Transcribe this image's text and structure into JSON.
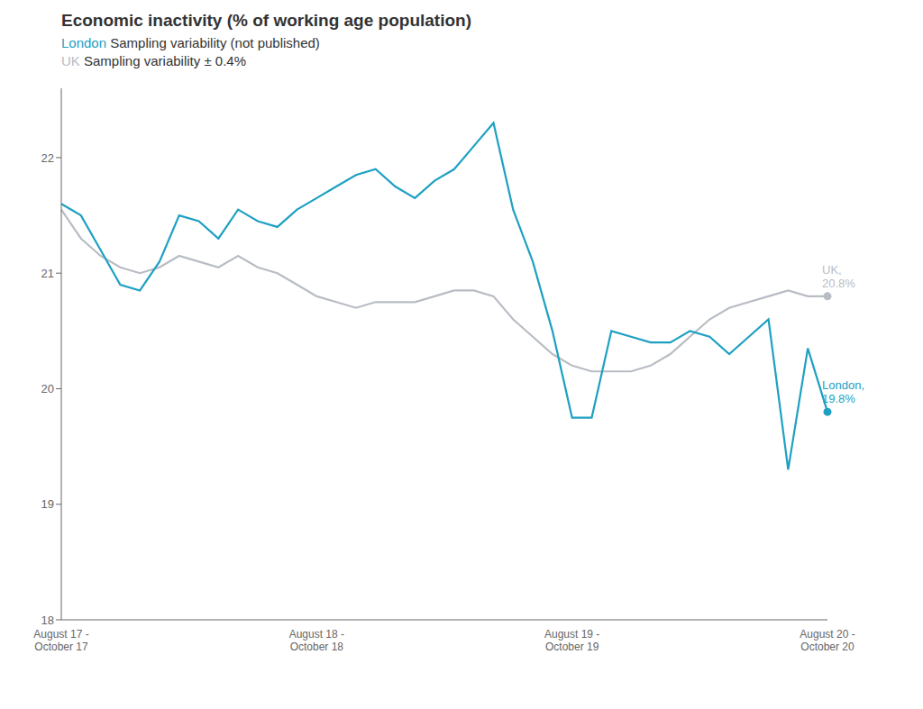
{
  "chart_data": {
    "type": "line",
    "title": "Economic inactivity (% of working age population)",
    "subtitle": [
      "London Sampling variability (not published)",
      "UK Sampling variability ± 0.4%"
    ],
    "categories": [
      "August 17 -\nOctober 17",
      null,
      null,
      null,
      null,
      null,
      null,
      null,
      null,
      null,
      null,
      null,
      null,
      "August 18 -\nOctober 18",
      null,
      null,
      null,
      null,
      null,
      null,
      null,
      null,
      null,
      null,
      null,
      null,
      "August 19 -\nOctober 19",
      null,
      null,
      null,
      null,
      null,
      null,
      null,
      null,
      null,
      null,
      null,
      null,
      "August 20 -\nOctober 20"
    ],
    "series": [
      {
        "name": "UK",
        "color": "#b8bcc4",
        "values": [
          21.55,
          21.3,
          21.15,
          21.05,
          21.0,
          21.05,
          21.15,
          21.1,
          21.05,
          21.15,
          21.05,
          21.0,
          20.9,
          20.8,
          20.75,
          20.7,
          20.75,
          20.75,
          20.75,
          20.8,
          20.85,
          20.85,
          20.8,
          20.6,
          20.45,
          20.3,
          20.2,
          20.15,
          20.15,
          20.15,
          20.2,
          20.3,
          20.45,
          20.6,
          20.7,
          20.75,
          20.8,
          20.85,
          20.8,
          20.8
        ]
      },
      {
        "name": "London",
        "color": "#1ea0c3",
        "values": [
          21.6,
          21.5,
          21.2,
          20.9,
          20.85,
          21.1,
          21.5,
          21.45,
          21.3,
          21.55,
          21.45,
          21.4,
          21.55,
          21.65,
          21.75,
          21.85,
          21.9,
          21.75,
          21.65,
          21.8,
          21.9,
          22.1,
          22.3,
          21.55,
          21.1,
          20.5,
          19.75,
          19.75,
          20.5,
          20.45,
          20.4,
          20.4,
          20.5,
          20.45,
          20.3,
          20.45,
          20.6,
          19.3,
          20.35,
          19.8
        ]
      }
    ],
    "ylim": [
      18,
      22.6
    ],
    "yticks": [
      18,
      19,
      20,
      21,
      22
    ],
    "grid": false,
    "annotations": [
      {
        "series": "UK",
        "text": "UK,\n20.8%"
      },
      {
        "series": "London",
        "text": "London,\n19.8%"
      }
    ]
  }
}
